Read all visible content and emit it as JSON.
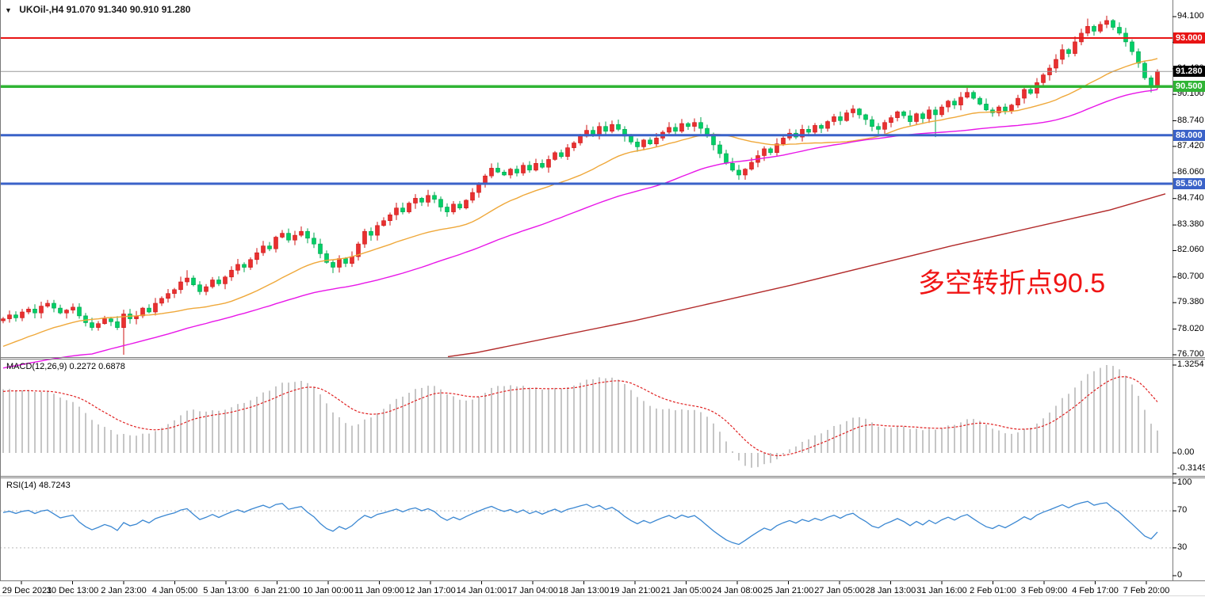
{
  "header": {
    "dropdown_icon": "▼",
    "symbol": "UKOil-,H4",
    "ohlc": "91.070 91.340 90.910 91.280"
  },
  "annotation": {
    "text": "多空转折点90.5",
    "color": "#f01414"
  },
  "main_axis_ticks": [
    "94.100",
    "92.780",
    "91.420",
    "90.100",
    "88.740",
    "87.420",
    "86.060",
    "84.740",
    "83.380",
    "82.060",
    "80.700",
    "79.380",
    "78.020",
    "76.700"
  ],
  "price_labels": [
    {
      "name": "resistance-level-label",
      "text": "93.000",
      "price": 93.0,
      "bg": "#e81414"
    },
    {
      "name": "current-price-label",
      "text": "91.280",
      "price": 91.28,
      "bg": "#000000"
    },
    {
      "name": "pivot-level-label",
      "text": "90.500",
      "price": 90.5,
      "bg": "#2fb434"
    },
    {
      "name": "support1-level-label",
      "text": "88.000",
      "price": 88.0,
      "bg": "#3a62c8"
    },
    {
      "name": "support2-level-label",
      "text": "85.500",
      "price": 85.5,
      "bg": "#3a62c8"
    }
  ],
  "macd_panel": {
    "label": "MACD(12,26,9) 0.2272 0.6878",
    "axis": [
      {
        "text": "1.3254",
        "value": 1.3254
      },
      {
        "text": "0.00",
        "value": 0.0
      },
      {
        "text": "-0.3149",
        "value": -0.3149
      }
    ]
  },
  "rsi_panel": {
    "label": "RSI(14) 48.7243",
    "axis": [
      {
        "text": "100",
        "value": 100
      },
      {
        "text": "70",
        "value": 70
      },
      {
        "text": "30",
        "value": 30
      },
      {
        "text": "0",
        "value": 0
      }
    ],
    "levels": [
      70,
      30
    ]
  },
  "time_axis": [
    "29 Dec 2021",
    "30 Dec 13:00",
    "2 Jan 23:00",
    "4 Jan 05:00",
    "5 Jan 13:00",
    "6 Jan 21:00",
    "10 Jan 00:00",
    "11 Jan 09:00",
    "12 Jan 17:00",
    "14 Jan 01:00",
    "17 Jan 04:00",
    "18 Jan 13:00",
    "19 Jan 21:00",
    "21 Jan 05:00",
    "24 Jan 08:00",
    "25 Jan 21:00",
    "27 Jan 05:00",
    "28 Jan 13:00",
    "31 Jan 16:00",
    "2 Feb 01:00",
    "3 Feb 09:00",
    "4 Feb 17:00",
    "7 Feb 20:00"
  ],
  "colors": {
    "up_fill": "#e83030",
    "up_border": "#cf1616",
    "down_fill": "#00cf66",
    "down_border": "#00a44e",
    "hist": "#c6c6c6",
    "macd_signal": "#e02020",
    "rsi_line": "#3a87d2",
    "grid_dash": "#bbbbbb",
    "pane_border": "#7a7a7a",
    "current_line": "#999999"
  },
  "chart_data": {
    "type": "candlestick",
    "symbol": "UKOil-",
    "timeframe": "H4",
    "price_range": [
      76.7,
      94.1
    ],
    "hlines": [
      {
        "price": 93.0,
        "color": "#e81414",
        "width": 2,
        "role": "resistance"
      },
      {
        "price": 91.28,
        "color": "#999999",
        "width": 1,
        "role": "current-price"
      },
      {
        "price": 90.5,
        "color": "#2fb434",
        "width": 3.5,
        "role": "pivot 多空转折点"
      },
      {
        "price": 88.0,
        "color": "#3a62c8",
        "width": 3,
        "role": "support"
      },
      {
        "price": 85.5,
        "color": "#3a62c8",
        "width": 3,
        "role": "support"
      }
    ],
    "candles": {
      "first_open": 78.45,
      "closes": [
        78.55,
        78.75,
        78.6,
        78.9,
        79.05,
        78.85,
        79.2,
        79.35,
        79.1,
        78.85,
        79.0,
        79.15,
        78.7,
        78.35,
        78.1,
        78.3,
        78.55,
        78.4,
        78.1,
        78.8,
        78.55,
        78.7,
        79.1,
        78.9,
        79.35,
        79.6,
        79.85,
        80.05,
        80.45,
        80.65,
        80.3,
        79.95,
        80.2,
        80.55,
        80.35,
        80.7,
        81.05,
        81.35,
        81.2,
        81.6,
        81.95,
        82.3,
        82.15,
        82.75,
        82.95,
        82.6,
        82.85,
        83.05,
        82.7,
        82.4,
        81.9,
        81.45,
        81.2,
        81.65,
        81.4,
        81.75,
        82.4,
        83.05,
        82.85,
        83.35,
        83.6,
        83.9,
        84.25,
        84.05,
        84.5,
        84.75,
        84.55,
        84.9,
        84.7,
        84.3,
        84.05,
        84.45,
        84.25,
        84.65,
        85.05,
        85.45,
        85.9,
        86.3,
        86.1,
        85.95,
        86.25,
        86.05,
        86.45,
        86.2,
        86.55,
        86.35,
        86.75,
        87.1,
        86.9,
        87.35,
        87.6,
        87.95,
        88.25,
        88.05,
        88.45,
        88.2,
        88.55,
        88.3,
        87.95,
        87.65,
        87.4,
        87.75,
        87.55,
        87.85,
        88.15,
        88.4,
        88.2,
        88.6,
        88.45,
        88.65,
        88.35,
        87.95,
        87.5,
        87.05,
        86.55,
        86.2,
        85.95,
        86.25,
        86.6,
        86.95,
        87.3,
        87.1,
        87.55,
        87.85,
        88.1,
        87.9,
        88.3,
        88.15,
        88.5,
        88.35,
        88.7,
        88.95,
        88.75,
        89.15,
        89.35,
        89.05,
        88.8,
        88.45,
        88.3,
        88.65,
        88.9,
        89.2,
        89.0,
        88.7,
        89.1,
        88.85,
        89.3,
        89.05,
        89.45,
        89.75,
        89.55,
        89.95,
        90.2,
        89.9,
        89.6,
        89.3,
        89.15,
        89.45,
        89.25,
        89.55,
        89.9,
        90.35,
        90.15,
        90.7,
        91.1,
        91.45,
        91.9,
        92.4,
        92.2,
        92.8,
        93.25,
        93.6,
        93.35,
        93.7,
        93.9,
        93.55,
        93.25,
        92.8,
        92.3,
        91.7,
        90.95,
        90.55,
        91.28
      ],
      "special_wicks": {
        "19": {
          "low": 76.7
        },
        "29": {
          "high": 81.05
        },
        "47": {
          "high": 83.3
        },
        "52": {
          "low": 80.9
        },
        "70": {
          "low": 83.8
        },
        "96": {
          "high": 88.75
        },
        "100": {
          "low": 87.15
        },
        "109": {
          "high": 88.8
        },
        "116": {
          "low": 85.7
        },
        "134": {
          "high": 89.55
        },
        "147": {
          "low": 87.9
        },
        "152": {
          "high": 90.45
        },
        "156": {
          "low": 88.95
        },
        "171": {
          "high": 94.0
        },
        "174": {
          "high": 94.1
        },
        "181": {
          "low": 90.2
        }
      }
    },
    "prehistory": {
      "count": 40,
      "from": 73.4,
      "to": 78.5,
      "zigzag": 0.18
    },
    "moving_averages": [
      {
        "name": "ma-fast",
        "period": 24,
        "color": "#efa83a"
      },
      {
        "name": "ma-medium",
        "period": 55,
        "color": "#e816e8"
      },
      {
        "name": "ma-slow",
        "color": "#b22a2a",
        "anchors": [
          [
            565,
            76.6
          ],
          [
            600,
            76.8
          ],
          [
            800,
            78.45
          ],
          [
            1000,
            80.3
          ],
          [
            1200,
            82.3
          ],
          [
            1400,
            84.15
          ],
          [
            1470,
            84.98
          ]
        ]
      }
    ],
    "macd": {
      "fast": 12,
      "slow": 26,
      "signal": 9,
      "axis_max": 1.3254,
      "axis_min": -0.3149,
      "readout": [
        0.2272,
        0.6878
      ]
    },
    "rsi": {
      "period": 14,
      "levels": [
        70,
        30
      ],
      "readout": 48.7243
    }
  }
}
